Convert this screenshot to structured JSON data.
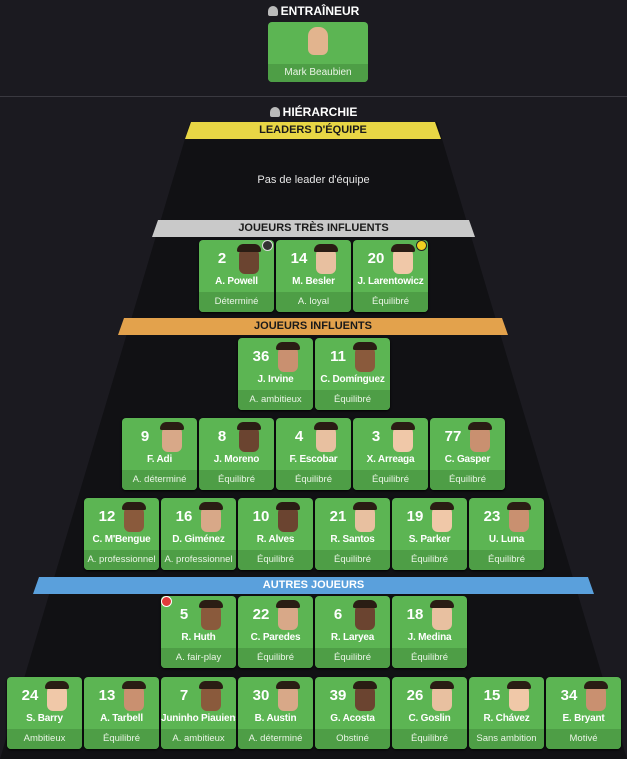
{
  "coach_section": {
    "title": "ENTRAÎNEUR",
    "icon": "person-icon",
    "coach": {
      "name": "Mark Beaubien"
    }
  },
  "hierarchy": {
    "title": "HIÉRARCHIE",
    "icon": "people-icon"
  },
  "colors": {
    "leaders": "#e8d645",
    "very_influential": "#c9c9c9",
    "influential": "#e3a24c",
    "others": "#5aa0dc",
    "card": "#5cb553",
    "card_status": "#4e9e46"
  },
  "leaders": {
    "label": "LEADERS D'ÉQUIPE",
    "empty_text": "Pas de leader d'équipe"
  },
  "very_influential": {
    "label": "JOUEURS TRÈS INFLUENTS",
    "rows": [
      [
        {
          "num": "2",
          "name": "A. Powell",
          "status": "Déterminé",
          "badge": "dark-badge-icon"
        },
        {
          "num": "14",
          "name": "M. Besler",
          "status": "A. loyal"
        },
        {
          "num": "20",
          "name": "J. Larentowicz",
          "status": "Équilibré",
          "badge": "yellow-badge-icon"
        }
      ]
    ]
  },
  "influential": {
    "label": "JOUEURS INFLUENTS",
    "rows": [
      [
        {
          "num": "36",
          "name": "J. Irvine",
          "status": "A. ambitieux"
        },
        {
          "num": "11",
          "name": "C. Domínguez",
          "status": "Équilibré"
        }
      ],
      [
        {
          "num": "9",
          "name": "F. Adi",
          "status": "A. déterminé"
        },
        {
          "num": "8",
          "name": "J. Moreno",
          "status": "Équilibré"
        },
        {
          "num": "4",
          "name": "F. Escobar",
          "status": "Équilibré"
        },
        {
          "num": "3",
          "name": "X. Arreaga",
          "status": "Équilibré"
        },
        {
          "num": "77",
          "name": "C. Gasper",
          "status": "Équilibré"
        }
      ],
      [
        {
          "num": "12",
          "name": "C. M'Bengue",
          "status": "A. professionnel"
        },
        {
          "num": "16",
          "name": "D. Giménez",
          "status": "A. professionnel"
        },
        {
          "num": "10",
          "name": "R. Alves",
          "status": "Équilibré"
        },
        {
          "num": "21",
          "name": "R. Santos",
          "status": "Équilibré"
        },
        {
          "num": "19",
          "name": "S. Parker",
          "status": "Équilibré"
        },
        {
          "num": "23",
          "name": "U. Luna",
          "status": "Équilibré"
        }
      ]
    ]
  },
  "others": {
    "label": "AUTRES JOUEURS",
    "rows": [
      [
        {
          "num": "5",
          "name": "R. Huth",
          "status": "A. fair-play",
          "badge": "red-alert-icon"
        },
        {
          "num": "22",
          "name": "C. Paredes",
          "status": "Équilibré"
        },
        {
          "num": "6",
          "name": "R. Laryea",
          "status": "Équilibré"
        },
        {
          "num": "18",
          "name": "J. Medina",
          "status": "Équilibré"
        }
      ],
      [
        {
          "num": "24",
          "name": "S. Barry",
          "status": "Ambitieux"
        },
        {
          "num": "13",
          "name": "A. Tarbell",
          "status": "Équilibré"
        },
        {
          "num": "7",
          "name": "Juninho Piauiense",
          "status": "A. ambitieux"
        },
        {
          "num": "30",
          "name": "B. Austin",
          "status": "A. déterminé"
        },
        {
          "num": "39",
          "name": "G. Acosta",
          "status": "Obstiné"
        },
        {
          "num": "26",
          "name": "C. Goslin",
          "status": "Équilibré"
        },
        {
          "num": "15",
          "name": "R. Chávez",
          "status": "Sans ambition"
        },
        {
          "num": "34",
          "name": "E. Bryant",
          "status": "Motivé"
        }
      ]
    ]
  }
}
